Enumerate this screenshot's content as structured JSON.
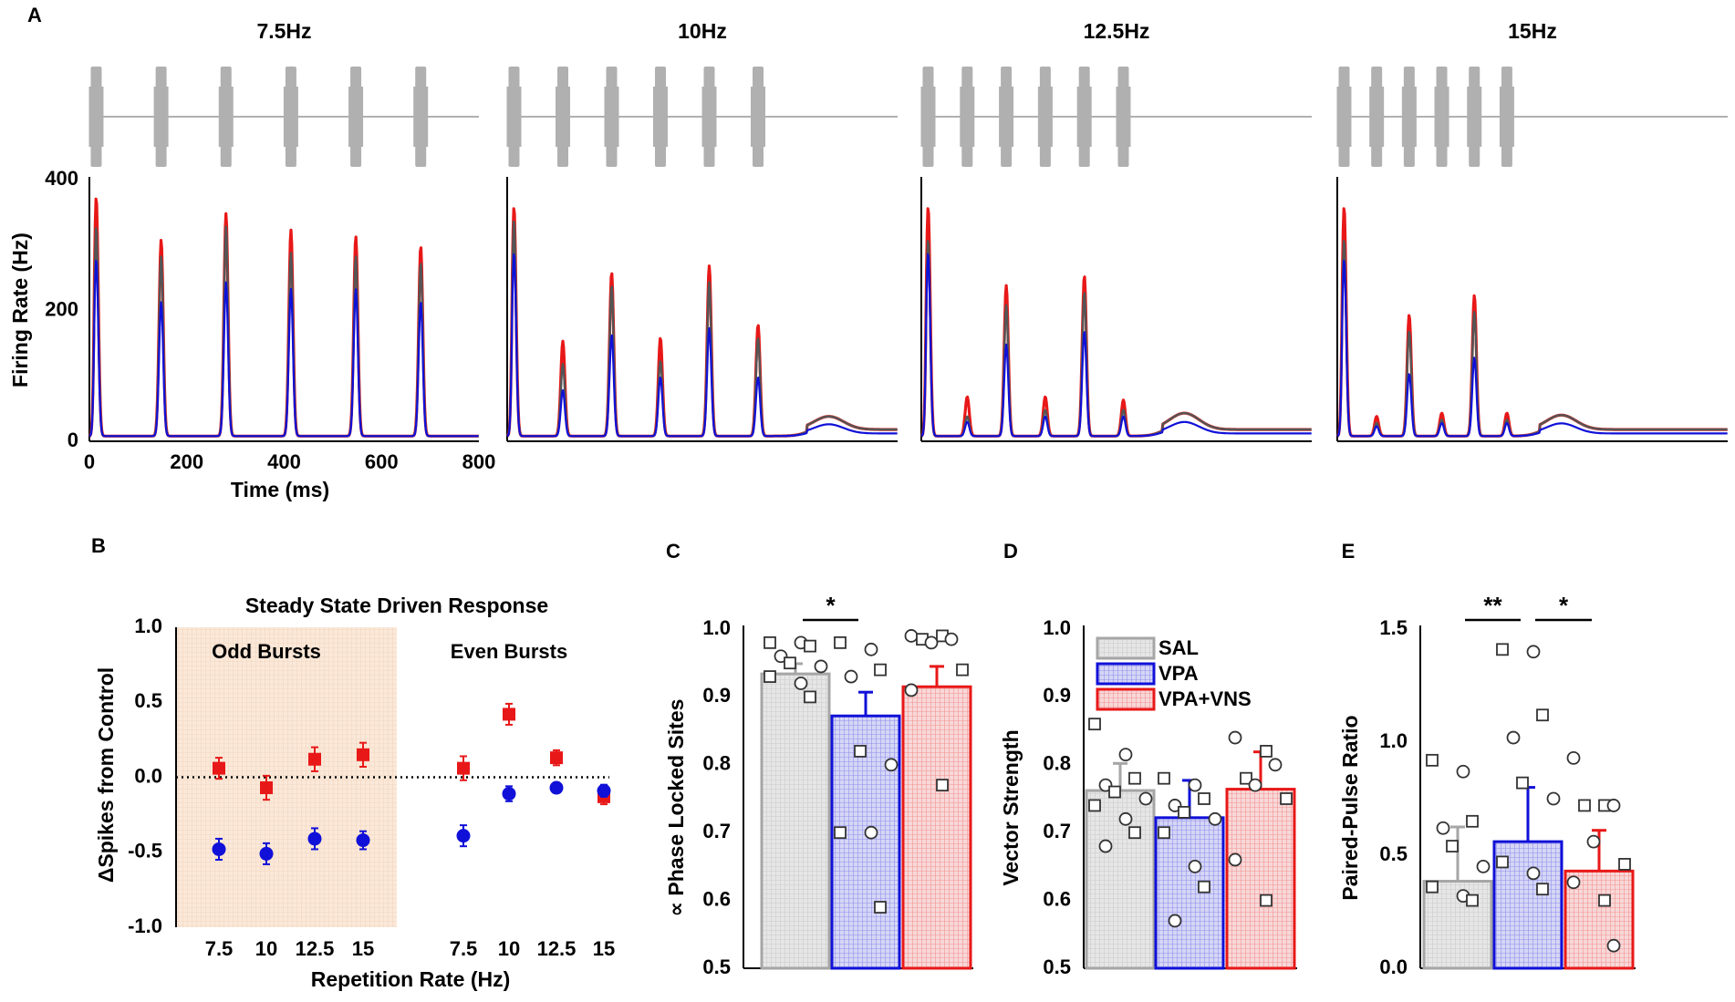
{
  "panel_labels": {
    "A": "A",
    "B": "B",
    "C": "C",
    "D": "D",
    "E": "E"
  },
  "colors": {
    "sal": "#a6a6a6",
    "sal_fill": "#e6e6e6",
    "vpa": "#1010d8",
    "vpa_fill": "#d6d6f6",
    "vnsp": "#e81818",
    "vnsp_fill": "#f8d8d8",
    "odd_shade": "#fbe8d8",
    "stimulus": "#b0b0b0"
  },
  "chart_data": [
    {
      "id": "A",
      "type": "line",
      "ylabel": "Firing Rate (Hz)",
      "xlabel": "Time (ms)",
      "xlim": [
        0,
        800
      ],
      "ylim": [
        0,
        400
      ],
      "xticks": [
        "0",
        "200",
        "400",
        "600",
        "800"
      ],
      "yticks": [
        "0",
        "200",
        "400"
      ],
      "series_names": [
        "SAL",
        "VPA",
        "VPA+VNS"
      ],
      "conditions": [
        {
          "title": "7.5Hz",
          "period_ms": 133.3,
          "bursts": 6,
          "peaks": {
            "SAL": [
              320,
              275,
              320,
              280,
              275,
              265
            ],
            "VPA": [
              270,
              205,
              235,
              225,
              225,
              205
            ],
            "VPA+VNS": [
              365,
              300,
              340,
              315,
              305,
              290
            ]
          }
        },
        {
          "title": "10Hz",
          "period_ms": 100,
          "bursts": 6,
          "late_bump": 20,
          "peaks": {
            "SAL": [
              330,
              110,
              230,
              115,
              235,
              150
            ],
            "VPA": [
              280,
              70,
              155,
              90,
              165,
              90
            ],
            "VPA+VNS": [
              350,
              145,
              250,
              150,
              260,
              170
            ]
          }
        },
        {
          "title": "12.5Hz",
          "period_ms": 80,
          "bursts": 6,
          "late_bump": 25,
          "peaks": {
            "SAL": [
              300,
              30,
              200,
              40,
              220,
              40
            ],
            "VPA": [
              280,
              22,
              140,
              30,
              160,
              30
            ],
            "VPA+VNS": [
              350,
              60,
              230,
              60,
              245,
              55
            ]
          }
        },
        {
          "title": "15Hz",
          "period_ms": 66.7,
          "bursts": 6,
          "late_bump": 22,
          "peaks": {
            "SAL": [
              300,
              20,
              160,
              25,
              190,
              25
            ],
            "VPA": [
              270,
              15,
              95,
              20,
              120,
              20
            ],
            "VPA+VNS": [
              350,
              30,
              185,
              35,
              215,
              35
            ]
          }
        }
      ]
    },
    {
      "id": "B",
      "type": "scatter",
      "title": "Steady State Driven Response",
      "ylabel": "ΔSpikes from Control",
      "xlabel": "Repetition Rate (Hz)",
      "ylim": [
        -1.0,
        1.0
      ],
      "yticks": [
        "-1.0",
        "-0.5",
        "0.0",
        "0.5",
        "1.0"
      ],
      "groups": [
        {
          "label": "Odd Bursts",
          "categories": [
            "7.5",
            "10",
            "12.5",
            "15"
          ]
        },
        {
          "label": "Even Bursts",
          "categories": [
            "7.5",
            "10",
            "12.5",
            "15"
          ]
        }
      ],
      "series": [
        {
          "name": "VPA+VNS",
          "marker": "square",
          "values": [
            0.06,
            -0.07,
            0.12,
            0.15,
            0.06,
            0.42,
            0.13,
            -0.13
          ],
          "errors": [
            0.07,
            0.08,
            0.08,
            0.08,
            0.08,
            0.07,
            0.05,
            0.05
          ]
        },
        {
          "name": "VPA",
          "marker": "circle",
          "values": [
            -0.48,
            -0.51,
            -0.41,
            -0.42,
            -0.39,
            -0.11,
            -0.07,
            -0.09
          ],
          "errors": [
            0.07,
            0.07,
            0.07,
            0.06,
            0.07,
            0.05,
            0.03,
            0.04
          ]
        }
      ]
    },
    {
      "id": "C",
      "type": "bar",
      "ylabel": "∝ Phase Locked Sites",
      "ylim": [
        0.5,
        1.0
      ],
      "yticks": [
        "0.5",
        "0.6",
        "0.7",
        "0.8",
        "0.9",
        "1.0"
      ],
      "categories": [
        "SAL",
        "VPA",
        "VPA+VNS"
      ],
      "values": [
        0.934,
        0.872,
        0.915
      ],
      "errors": [
        0.015,
        0.035,
        0.03
      ],
      "points": [
        [
          0.98,
          0.98,
          0.975,
          0.96,
          0.95,
          0.945,
          0.93,
          0.92,
          0.9
        ],
        [
          0.98,
          0.97,
          0.94,
          0.93,
          0.82,
          0.8,
          0.7,
          0.7,
          0.59
        ],
        [
          0.99,
          0.99,
          0.985,
          0.985,
          0.98,
          0.94,
          0.91,
          0.77
        ]
      ],
      "significance": [
        {
          "from": 0,
          "to": 1,
          "label": "*"
        }
      ]
    },
    {
      "id": "D",
      "type": "bar",
      "ylabel": "Vector  Strength",
      "ylim": [
        0.5,
        1.0
      ],
      "yticks": [
        "0.5",
        "0.6",
        "0.7",
        "0.8",
        "0.9",
        "1.0"
      ],
      "categories": [
        "SAL",
        "VPA",
        "VPA+VNS"
      ],
      "values": [
        0.762,
        0.722,
        0.764
      ],
      "errors": [
        0.04,
        0.055,
        0.055
      ],
      "points": [
        [
          0.86,
          0.815,
          0.78,
          0.77,
          0.76,
          0.75,
          0.74,
          0.72,
          0.7,
          0.68
        ],
        [
          0.78,
          0.77,
          0.75,
          0.74,
          0.73,
          0.72,
          0.7,
          0.65,
          0.62,
          0.57
        ],
        [
          0.84,
          0.82,
          0.8,
          0.78,
          0.77,
          0.75,
          0.66,
          0.6
        ]
      ],
      "legend": [
        "SAL",
        "VPA",
        "VPA+VNS"
      ]
    },
    {
      "id": "E",
      "type": "bar",
      "ylabel": "Paired-Pulse Ratio",
      "ylim": [
        0.0,
        1.5
      ],
      "yticks": [
        "0.0",
        "0.5",
        "1.0",
        "1.5"
      ],
      "categories": [
        "SAL",
        "VPA",
        "VPA+VNS"
      ],
      "values": [
        0.385,
        0.56,
        0.43
      ],
      "errors": [
        0.24,
        0.24,
        0.18
      ],
      "points": [
        [
          0.92,
          0.87,
          0.65,
          0.62,
          0.54,
          0.45,
          0.36,
          0.32,
          0.3
        ],
        [
          1.41,
          1.4,
          1.12,
          1.02,
          0.82,
          0.75,
          0.47,
          0.42,
          0.35
        ],
        [
          0.93,
          0.72,
          0.72,
          0.72,
          0.56,
          0.46,
          0.38,
          0.3,
          0.1
        ]
      ],
      "significance": [
        {
          "from": 0,
          "to": 1,
          "label": "**"
        },
        {
          "from": 1,
          "to": 2,
          "label": "*"
        }
      ]
    }
  ]
}
